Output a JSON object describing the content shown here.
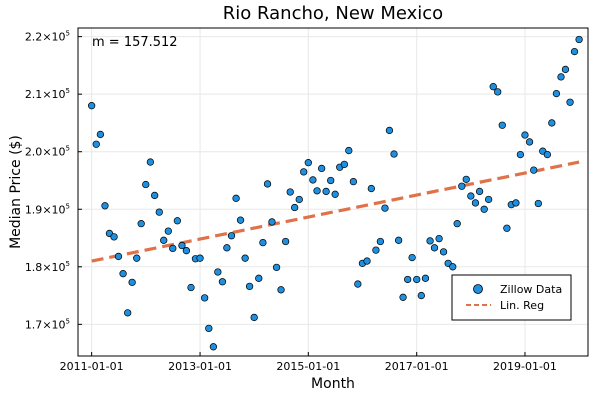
{
  "chart_data": {
    "type": "scatter",
    "title": "Rio Rancho, New Mexico",
    "xlabel": "Month",
    "ylabel": "Median Price ($)",
    "annotation": "m = 157.512",
    "x_ticks": [
      "2011-01-01",
      "2013-01-01",
      "2015-01-01",
      "2017-01-01",
      "2019-01-01"
    ],
    "y_ticks": [
      {
        "value": 170000,
        "mantissa": "1.7",
        "base": "×10",
        "exp": "5"
      },
      {
        "value": 180000,
        "mantissa": "1.8",
        "base": "×10",
        "exp": "5"
      },
      {
        "value": 190000,
        "mantissa": "1.9",
        "base": "×10",
        "exp": "5"
      },
      {
        "value": 200000,
        "mantissa": "2.0",
        "base": "×10",
        "exp": "5"
      },
      {
        "value": 210000,
        "mantissa": "2.1",
        "base": "×10",
        "exp": "5"
      },
      {
        "value": 220000,
        "mantissa": "2.2",
        "base": "×10",
        "exp": "5"
      }
    ],
    "xlim": [
      "2010-10-01",
      "2020-03-01"
    ],
    "ylim": [
      164500,
      221500
    ],
    "grid": true,
    "legend_position": "bottom-right",
    "series": [
      {
        "name": "Zillow Data",
        "kind": "scatter",
        "color": "#1f8fe0",
        "points": [
          [
            "2011-01-01",
            208000
          ],
          [
            "2011-02-01",
            201300
          ],
          [
            "2011-03-01",
            203000
          ],
          [
            "2011-04-01",
            190600
          ],
          [
            "2011-05-01",
            185800
          ],
          [
            "2011-06-01",
            185200
          ],
          [
            "2011-07-01",
            181800
          ],
          [
            "2011-08-01",
            178800
          ],
          [
            "2011-09-01",
            172000
          ],
          [
            "2011-10-01",
            177300
          ],
          [
            "2011-11-01",
            181500
          ],
          [
            "2011-12-01",
            187500
          ],
          [
            "2012-01-01",
            194300
          ],
          [
            "2012-02-01",
            198200
          ],
          [
            "2012-03-01",
            192400
          ],
          [
            "2012-04-01",
            189500
          ],
          [
            "2012-05-01",
            184600
          ],
          [
            "2012-06-01",
            186200
          ],
          [
            "2012-07-01",
            183200
          ],
          [
            "2012-08-01",
            188000
          ],
          [
            "2012-09-01",
            183700
          ],
          [
            "2012-10-01",
            182800
          ],
          [
            "2012-11-01",
            176400
          ],
          [
            "2012-12-01",
            181400
          ],
          [
            "2013-01-01",
            181500
          ],
          [
            "2013-02-01",
            174600
          ],
          [
            "2013-03-01",
            169300
          ],
          [
            "2013-04-01",
            166100
          ],
          [
            "2013-05-01",
            179100
          ],
          [
            "2013-06-01",
            177400
          ],
          [
            "2013-07-01",
            183300
          ],
          [
            "2013-08-01",
            185400
          ],
          [
            "2013-09-01",
            191900
          ],
          [
            "2013-10-01",
            188100
          ],
          [
            "2013-11-01",
            181500
          ],
          [
            "2013-12-01",
            176600
          ],
          [
            "2014-01-01",
            171200
          ],
          [
            "2014-02-01",
            178000
          ],
          [
            "2014-03-01",
            184200
          ],
          [
            "2014-04-01",
            194400
          ],
          [
            "2014-05-01",
            187800
          ],
          [
            "2014-06-01",
            179900
          ],
          [
            "2014-07-01",
            176000
          ],
          [
            "2014-08-01",
            184400
          ],
          [
            "2014-09-01",
            193000
          ],
          [
            "2014-10-01",
            190300
          ],
          [
            "2014-11-01",
            191700
          ],
          [
            "2014-12-01",
            196500
          ],
          [
            "2015-01-01",
            198100
          ],
          [
            "2015-02-01",
            195100
          ],
          [
            "2015-03-01",
            193200
          ],
          [
            "2015-04-01",
            197100
          ],
          [
            "2015-05-01",
            193100
          ],
          [
            "2015-06-01",
            195000
          ],
          [
            "2015-07-01",
            192600
          ],
          [
            "2015-08-01",
            197300
          ],
          [
            "2015-09-01",
            197800
          ],
          [
            "2015-10-01",
            200200
          ],
          [
            "2015-11-01",
            194800
          ],
          [
            "2015-12-01",
            177000
          ],
          [
            "2016-01-01",
            180600
          ],
          [
            "2016-02-01",
            181000
          ],
          [
            "2016-03-01",
            193600
          ],
          [
            "2016-04-01",
            182900
          ],
          [
            "2016-05-01",
            184400
          ],
          [
            "2016-06-01",
            190200
          ],
          [
            "2016-07-01",
            203700
          ],
          [
            "2016-08-01",
            199600
          ],
          [
            "2016-09-01",
            184600
          ],
          [
            "2016-10-01",
            174700
          ],
          [
            "2016-11-01",
            177800
          ],
          [
            "2016-12-01",
            181600
          ],
          [
            "2017-01-01",
            177800
          ],
          [
            "2017-02-01",
            175000
          ],
          [
            "2017-03-01",
            178000
          ],
          [
            "2017-04-01",
            184500
          ],
          [
            "2017-05-01",
            183300
          ],
          [
            "2017-06-01",
            184900
          ],
          [
            "2017-07-01",
            182600
          ],
          [
            "2017-08-01",
            180600
          ],
          [
            "2017-09-01",
            180000
          ],
          [
            "2017-10-01",
            187500
          ],
          [
            "2017-11-01",
            194000
          ],
          [
            "2017-12-01",
            195200
          ],
          [
            "2018-01-01",
            192300
          ],
          [
            "2018-02-01",
            191100
          ],
          [
            "2018-03-01",
            193100
          ],
          [
            "2018-04-01",
            190000
          ],
          [
            "2018-05-01",
            191700
          ],
          [
            "2018-06-01",
            211300
          ],
          [
            "2018-07-01",
            210400
          ],
          [
            "2018-08-01",
            204600
          ],
          [
            "2018-09-01",
            186700
          ],
          [
            "2018-10-01",
            190800
          ],
          [
            "2018-11-01",
            191100
          ],
          [
            "2018-12-01",
            199500
          ],
          [
            "2019-01-01",
            202900
          ],
          [
            "2019-02-01",
            201700
          ],
          [
            "2019-03-01",
            196800
          ],
          [
            "2019-04-01",
            191000
          ],
          [
            "2019-05-01",
            200100
          ],
          [
            "2019-06-01",
            199500
          ],
          [
            "2019-07-01",
            205000
          ],
          [
            "2019-08-01",
            210100
          ],
          [
            "2019-09-01",
            213000
          ],
          [
            "2019-10-01",
            214300
          ],
          [
            "2019-11-01",
            208600
          ],
          [
            "2019-12-01",
            217400
          ],
          [
            "2020-01-01",
            219500
          ]
        ]
      },
      {
        "name": "Lin. Reg",
        "kind": "line",
        "dash": "dashed",
        "color": "#e0724a",
        "points": [
          [
            "2011-01-01",
            181000
          ],
          [
            "2020-01-01",
            198200
          ]
        ]
      }
    ]
  }
}
